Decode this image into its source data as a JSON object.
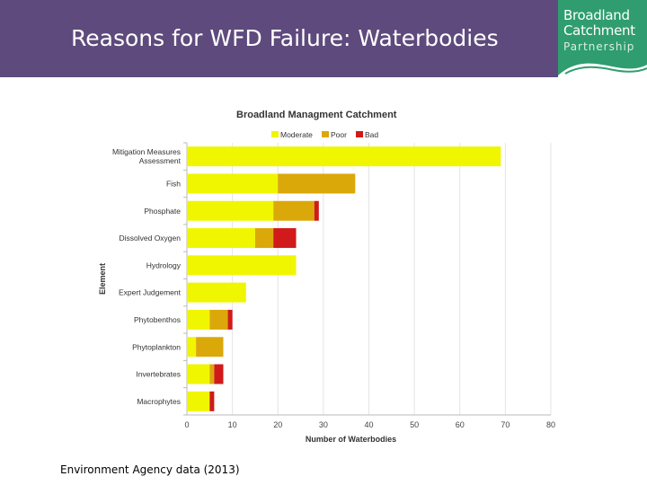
{
  "slide": {
    "title": "Reasons for WFD Failure: Waterbodies",
    "source_note": "Environment Agency data (2013)"
  },
  "logo": {
    "line1": "Broadland",
    "line2": "Catchment",
    "line3": "Partnership"
  },
  "colors": {
    "header_bg": "#5e4a7c",
    "logo_bg": "#2f9d6f",
    "moderate": "#f0f500",
    "poor": "#dba80a",
    "bad": "#d11a1a"
  },
  "chart_data": {
    "type": "bar",
    "orientation": "horizontal",
    "stacked": true,
    "title": "Broadland Managment Catchment",
    "xlabel": "Number of Waterbodies",
    "ylabel": "Element",
    "xlim": [
      0,
      80
    ],
    "xticks": [
      0,
      10,
      20,
      30,
      40,
      50,
      60,
      70,
      80
    ],
    "legend_position": "top",
    "categories": [
      [
        "Mitigation Measures",
        "Assessment"
      ],
      [
        "Fish"
      ],
      [
        "Phosphate"
      ],
      [
        "Dissolved Oxygen"
      ],
      [
        "Hydrology"
      ],
      [
        "Expert Judgement"
      ],
      [
        "Phytobenthos"
      ],
      [
        "Phytoplankton"
      ],
      [
        "Invertebrates"
      ],
      [
        "Macrophytes"
      ]
    ],
    "series": [
      {
        "name": "Moderate",
        "color": "#f0f500",
        "values": [
          69,
          20,
          19,
          15,
          24,
          13,
          5,
          2,
          5,
          5
        ]
      },
      {
        "name": "Poor",
        "color": "#dba80a",
        "values": [
          0,
          17,
          9,
          4,
          0,
          0,
          4,
          6,
          1,
          0
        ]
      },
      {
        "name": "Bad",
        "color": "#d11a1a",
        "values": [
          0,
          0,
          1,
          5,
          0,
          0,
          1,
          0,
          2,
          1
        ]
      }
    ]
  }
}
